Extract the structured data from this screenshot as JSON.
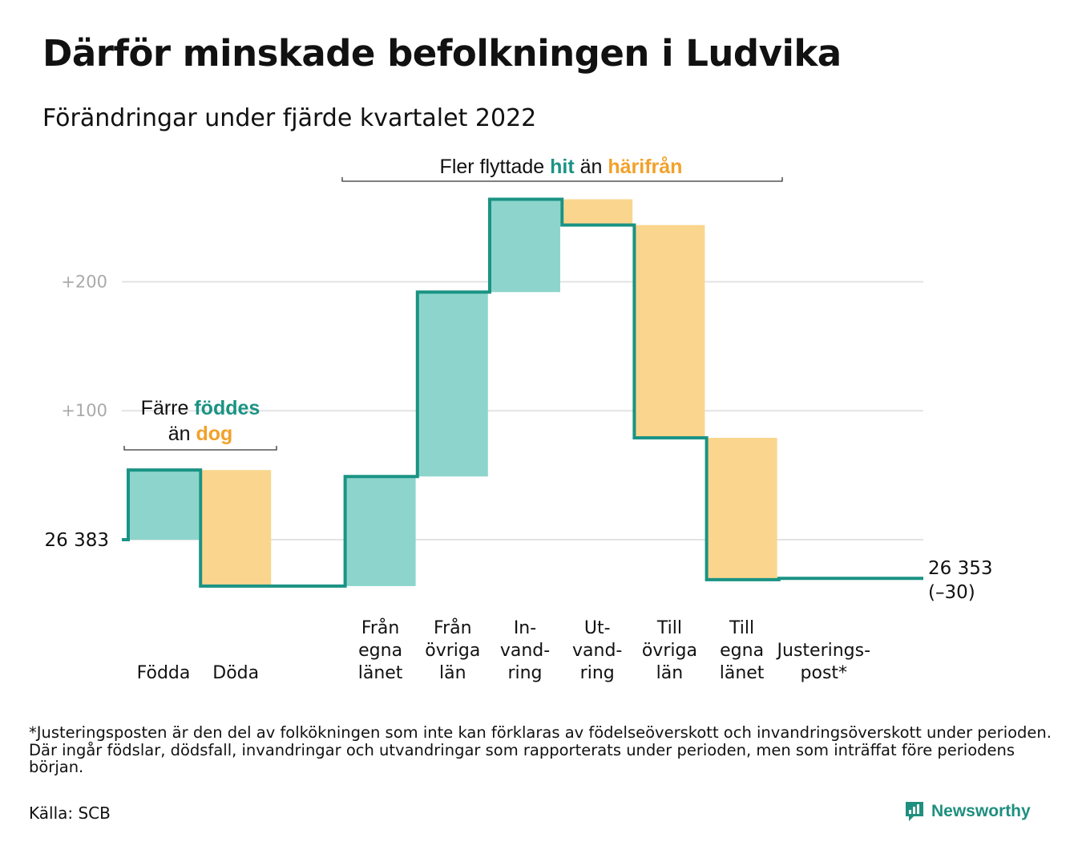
{
  "title": "Därför minskade befolkningen i Ludvika",
  "subtitle": "Förändringar under fjärde kvartalet 2022",
  "footnote": "*Justeringsposten är den del av folkökningen som inte kan förklaras av födelseöverskott och invandringsöverskott under perioden. Där ingår födslar, dödsfall, invandringar och utvandringar som rapporterats under perioden, men som inträffat före periodens början.",
  "source": "Källa: SCB",
  "brand": {
    "name": "Newsworthy",
    "icon": "newsworthy-logo-icon"
  },
  "colors": {
    "increase": "#8dd5cc",
    "decrease": "#fad58d",
    "line": "#1a9384",
    "hit_text": "#1a9384",
    "harifran_text": "#f2a12a",
    "grid": "#e3e3e3",
    "tick_text": "#aaaaaa"
  },
  "chart_data": {
    "type": "waterfall",
    "start_label": "26 383",
    "end_labels": [
      "26 353",
      "(–30)"
    ],
    "y_ticks": [
      {
        "value": 100,
        "label": "+100"
      },
      {
        "value": 200,
        "label": "+200"
      }
    ],
    "ylim": [
      -60,
      265
    ],
    "steps": [
      {
        "label_lines": [
          "Födda"
        ],
        "value": 54,
        "kind": "increase"
      },
      {
        "label_lines": [
          "Döda"
        ],
        "value": -90,
        "kind": "decrease"
      },
      {
        "label_lines": [],
        "value": 0,
        "kind": "gap"
      },
      {
        "label_lines": [
          "Från",
          "egna",
          "länet"
        ],
        "value": 85,
        "kind": "increase"
      },
      {
        "label_lines": [
          "Från",
          "övriga",
          "län"
        ],
        "value": 143,
        "kind": "increase"
      },
      {
        "label_lines": [
          "In-",
          "vand-",
          "ring"
        ],
        "value": 72,
        "kind": "increase"
      },
      {
        "label_lines": [
          "Ut-",
          "vand-",
          "ring"
        ],
        "value": -20,
        "kind": "decrease"
      },
      {
        "label_lines": [
          "Till",
          "övriga",
          "län"
        ],
        "value": -165,
        "kind": "decrease"
      },
      {
        "label_lines": [
          "Till",
          "egna",
          "länet"
        ],
        "value": -110,
        "kind": "decrease"
      },
      {
        "label_lines": [
          "Justerings-",
          "post*"
        ],
        "value": 1,
        "kind": "adjustment"
      }
    ],
    "annotations": [
      {
        "id": "migration",
        "parts": [
          {
            "text": "Fler flyttade ",
            "style": "plain"
          },
          {
            "text": "hit",
            "style": "hit"
          },
          {
            "text": " än ",
            "style": "plain"
          },
          {
            "text": "härifrån",
            "style": "harifran"
          }
        ]
      },
      {
        "id": "births",
        "line1": [
          {
            "text": "Färre ",
            "style": "plain"
          },
          {
            "text": "föddes",
            "style": "hit"
          }
        ],
        "line2": [
          {
            "text": "än ",
            "style": "plain"
          },
          {
            "text": "dog",
            "style": "harifran"
          }
        ]
      }
    ]
  }
}
